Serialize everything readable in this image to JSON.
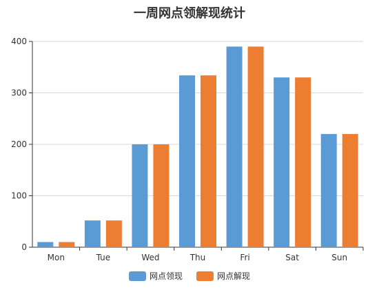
{
  "chart_data": {
    "type": "bar",
    "title": "一周网点领解现统计",
    "categories": [
      "Mon",
      "Tue",
      "Wed",
      "Thu",
      "Fri",
      "Sat",
      "Sun"
    ],
    "series": [
      {
        "name": "网点领现",
        "color": "#5b9bd5",
        "values": [
          10,
          52,
          200,
          334,
          390,
          330,
          220
        ]
      },
      {
        "name": "网点解现",
        "color": "#ed7d31",
        "values": [
          10,
          52,
          200,
          334,
          390,
          330,
          220
        ]
      }
    ],
    "yticks": [
      0,
      100,
      200,
      300,
      400
    ],
    "ylim": [
      0,
      400
    ],
    "grid": true,
    "legend_position": "bottom"
  }
}
